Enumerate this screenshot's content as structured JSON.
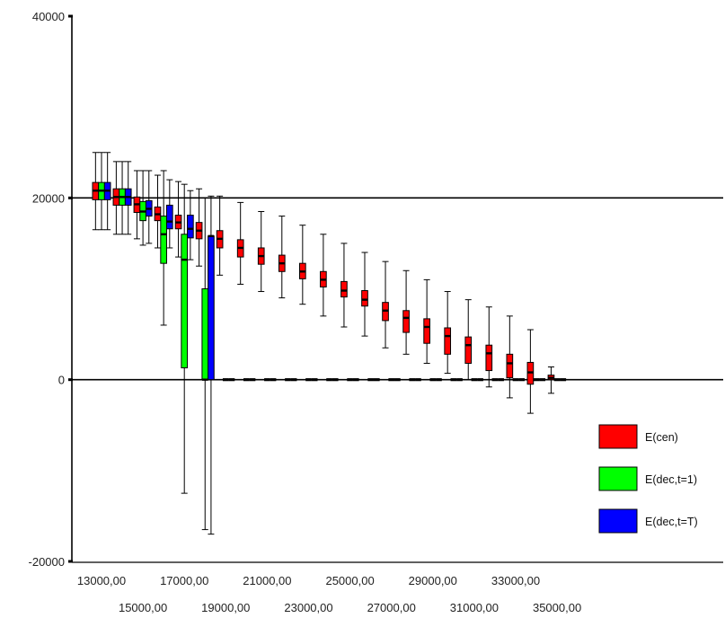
{
  "chart_data": {
    "type": "boxplot",
    "title": "",
    "xlabel": "",
    "ylabel": "",
    "ylim": [
      -20000,
      40000
    ],
    "y_ticks": [
      "40000",
      "20000",
      "0",
      "-20000"
    ],
    "y_tick_values": [
      40000,
      20000,
      0,
      -20000
    ],
    "x_tick_labels": [
      "13000,00",
      "15000,00",
      "17000,00",
      "19000,00",
      "21000,00",
      "23000,00",
      "25000,00",
      "27000,00",
      "29000,00",
      "31000,00",
      "33000,00",
      "35000,00"
    ],
    "x_tick_values": [
      13000,
      15000,
      17000,
      19000,
      21000,
      23000,
      25000,
      27000,
      29000,
      31000,
      33000,
      35000
    ],
    "reference_lines": [
      20000,
      0
    ],
    "legend_position": "bottom-right",
    "colors": {
      "E(cen)": "#ff0000",
      "E(dec,t=1)": "#00ff00",
      "E(dec,t=T)": "#0000ff"
    },
    "series": [
      {
        "name": "E(cen)",
        "color": "#ff0000",
        "x": [
          13000,
          14000,
          15000,
          16000,
          17000,
          18000,
          19000,
          20000,
          21000,
          22000,
          23000,
          24000,
          25000,
          26000,
          27000,
          28000,
          29000,
          30000,
          31000,
          32000,
          33000,
          34000,
          35000
        ],
        "whisker_low": [
          16500,
          16000,
          15500,
          14500,
          13500,
          12500,
          11500,
          10500,
          9700,
          9000,
          8300,
          7000,
          5800,
          4800,
          3500,
          2800,
          1800,
          700,
          0,
          -800,
          -2000,
          -3700,
          -1500
        ],
        "q1": [
          19800,
          19200,
          18400,
          17500,
          16600,
          15500,
          14500,
          13500,
          12700,
          11900,
          11100,
          10200,
          9100,
          8100,
          6500,
          5200,
          4000,
          2800,
          1800,
          1000,
          200,
          -500,
          0
        ],
        "median": [
          20800,
          20100,
          19300,
          18200,
          17300,
          16400,
          15500,
          14500,
          13600,
          12800,
          11900,
          11000,
          9800,
          8800,
          7600,
          6800,
          5800,
          4800,
          3800,
          2900,
          1800,
          800,
          200
        ],
        "q3": [
          21700,
          21000,
          20100,
          19000,
          18100,
          17300,
          16400,
          15400,
          14500,
          13700,
          12800,
          11900,
          10800,
          9800,
          8500,
          7600,
          6700,
          5700,
          4700,
          3800,
          2800,
          1900,
          500
        ],
        "whisker_high": [
          25000,
          24000,
          23000,
          22500,
          21800,
          21000,
          20200,
          19500,
          18500,
          18000,
          17000,
          16000,
          15000,
          14000,
          13000,
          12000,
          11000,
          9700,
          8800,
          8000,
          7000,
          5500,
          1400
        ]
      },
      {
        "name": "E(dec,t=1)",
        "color": "#00ff00",
        "x": [
          13000,
          14000,
          15000,
          16000,
          17000,
          18000,
          19000,
          20000,
          21000,
          22000,
          23000,
          24000,
          25000,
          26000,
          27000,
          28000,
          29000,
          30000,
          31000,
          32000,
          33000,
          34000,
          35000
        ],
        "whisker_low": [
          16500,
          16000,
          14800,
          6000,
          -12500,
          -16500,
          0,
          0,
          0,
          0,
          0,
          0,
          0,
          0,
          0,
          0,
          0,
          0,
          0,
          0,
          0,
          0,
          0
        ],
        "q1": [
          19800,
          19200,
          17500,
          12800,
          1300,
          0,
          0,
          0,
          0,
          0,
          0,
          0,
          0,
          0,
          0,
          0,
          0,
          0,
          0,
          0,
          0,
          0,
          0
        ],
        "median": [
          20800,
          20100,
          18500,
          16000,
          13200,
          0,
          0,
          0,
          0,
          0,
          0,
          0,
          0,
          0,
          0,
          0,
          0,
          0,
          0,
          0,
          0,
          0,
          0
        ],
        "q3": [
          21700,
          21000,
          19600,
          18000,
          16000,
          10000,
          0,
          0,
          0,
          0,
          0,
          0,
          0,
          0,
          0,
          0,
          0,
          0,
          0,
          0,
          0,
          0,
          0
        ],
        "whisker_high": [
          25000,
          24000,
          23000,
          23000,
          21500,
          20000,
          0,
          0,
          0,
          0,
          0,
          0,
          0,
          0,
          0,
          0,
          0,
          0,
          0,
          0,
          0,
          0,
          0
        ]
      },
      {
        "name": "E(dec,t=T)",
        "color": "#0000ff",
        "x": [
          13000,
          14000,
          15000,
          16000,
          17000,
          18000,
          19000,
          20000,
          21000,
          22000,
          23000,
          24000,
          25000,
          26000,
          27000,
          28000,
          29000,
          30000,
          31000,
          32000,
          33000,
          34000,
          35000
        ],
        "whisker_low": [
          16500,
          16000,
          15000,
          14500,
          13200,
          -17000,
          0,
          0,
          0,
          0,
          0,
          0,
          0,
          0,
          0,
          0,
          0,
          0,
          0,
          0,
          0,
          0,
          0
        ],
        "q1": [
          19800,
          19200,
          18000,
          16600,
          15600,
          0,
          0,
          0,
          0,
          0,
          0,
          0,
          0,
          0,
          0,
          0,
          0,
          0,
          0,
          0,
          0,
          0,
          0
        ],
        "median": [
          20800,
          20100,
          18800,
          17400,
          16600,
          15800,
          0,
          0,
          0,
          0,
          0,
          0,
          0,
          0,
          0,
          0,
          0,
          0,
          0,
          0,
          0,
          0,
          0
        ],
        "q3": [
          21700,
          21000,
          19700,
          19200,
          18100,
          15800,
          0,
          0,
          0,
          0,
          0,
          0,
          0,
          0,
          0,
          0,
          0,
          0,
          0,
          0,
          0,
          0,
          0
        ],
        "whisker_high": [
          25000,
          24000,
          23000,
          22000,
          20800,
          20200,
          0,
          0,
          0,
          0,
          0,
          0,
          0,
          0,
          0,
          0,
          0,
          0,
          0,
          0,
          0,
          0,
          0
        ]
      }
    ]
  }
}
